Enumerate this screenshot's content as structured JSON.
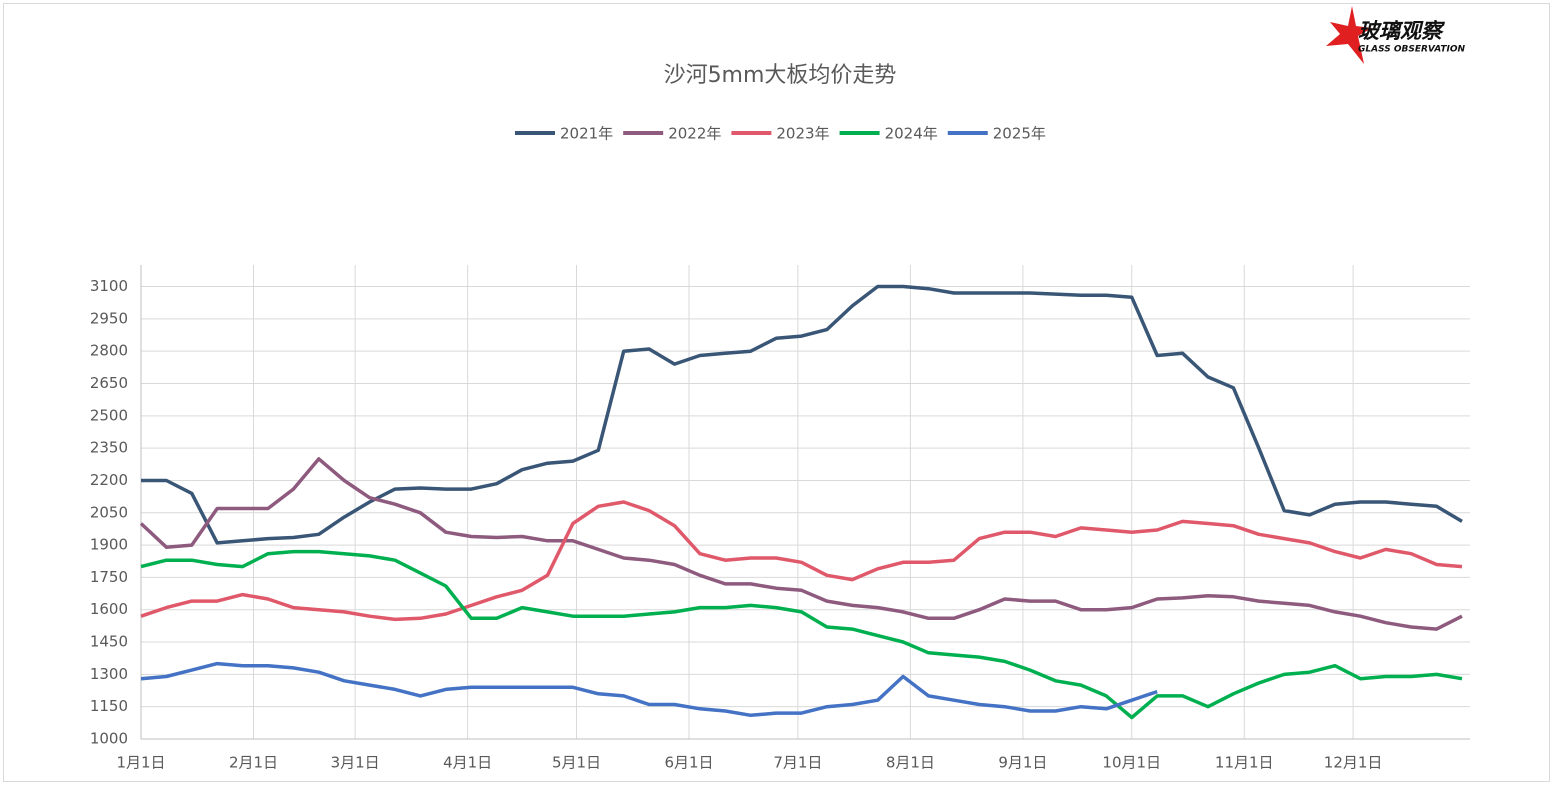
{
  "chart_data": {
    "type": "line",
    "title": "沙河5mm大板均价走势",
    "logo": {
      "title": "玻璃观察",
      "subtitle": "GLASS OBSERVATION"
    },
    "x": [
      0,
      7,
      14,
      21,
      28,
      35,
      42,
      49,
      56,
      63,
      70,
      77,
      84,
      91,
      98,
      105,
      112,
      119,
      126,
      133,
      140,
      147,
      154,
      161,
      168,
      175,
      182,
      189,
      196,
      203,
      210,
      217,
      224,
      231,
      238,
      245,
      252,
      259,
      266,
      273,
      280,
      287,
      294,
      301,
      308,
      315,
      322,
      329,
      336,
      343,
      350,
      357,
      364
    ],
    "xlim": [
      0,
      364
    ],
    "xticks": [
      {
        "value": 0,
        "label": "1月1日"
      },
      {
        "value": 31,
        "label": "2月1日"
      },
      {
        "value": 59,
        "label": "3月1日"
      },
      {
        "value": 90,
        "label": "4月1日"
      },
      {
        "value": 120,
        "label": "5月1日"
      },
      {
        "value": 151,
        "label": "6月1日"
      },
      {
        "value": 181,
        "label": "7月1日"
      },
      {
        "value": 212,
        "label": "8月1日"
      },
      {
        "value": 243,
        "label": "9月1日"
      },
      {
        "value": 273,
        "label": "10月1日"
      },
      {
        "value": 304,
        "label": "11月1日"
      },
      {
        "value": 334,
        "label": "12月1日"
      }
    ],
    "ylim": [
      1000,
      3200
    ],
    "yticks": [
      1000,
      1150,
      1300,
      1450,
      1600,
      1750,
      1900,
      2050,
      2200,
      2350,
      2500,
      2650,
      2800,
      2950,
      3100
    ],
    "grid": true,
    "series": [
      {
        "name": "2021年",
        "color": "#3a5676",
        "values": [
          2200,
          2200,
          2140,
          1910,
          1920,
          1930,
          1935,
          1950,
          2030,
          2100,
          2160,
          2165,
          2160,
          2160,
          2185,
          2250,
          2280,
          2290,
          2340,
          2800,
          2810,
          2740,
          2780,
          2790,
          2800,
          2860,
          2870,
          2900,
          3010,
          3100,
          3100,
          3090,
          3070,
          3070,
          3070,
          3070,
          3065,
          3060,
          3060,
          3050,
          2780,
          2790,
          2680,
          2630,
          2350,
          2060,
          2040,
          2090,
          2100,
          2100,
          2090,
          2080,
          2010
        ]
      },
      {
        "name": "2022年",
        "color": "#8e5b7f",
        "values": [
          2000,
          1890,
          1900,
          2070,
          2070,
          2070,
          2160,
          2300,
          2200,
          2120,
          2090,
          2050,
          1960,
          1940,
          1935,
          1940,
          1920,
          1920,
          1880,
          1840,
          1830,
          1810,
          1760,
          1720,
          1720,
          1700,
          1690,
          1640,
          1620,
          1610,
          1590,
          1560,
          1560,
          1600,
          1650,
          1640,
          1640,
          1600,
          1600,
          1610,
          1650,
          1655,
          1665,
          1660,
          1640,
          1630,
          1620,
          1590,
          1570,
          1540,
          1520,
          1510,
          1570
        ]
      },
      {
        "name": "2023年",
        "color": "#e0596a",
        "values": [
          1570,
          1610,
          1640,
          1640,
          1670,
          1650,
          1610,
          1600,
          1590,
          1570,
          1555,
          1560,
          1580,
          1620,
          1660,
          1690,
          1760,
          2000,
          2080,
          2100,
          2060,
          1990,
          1860,
          1830,
          1840,
          1840,
          1820,
          1760,
          1740,
          1790,
          1820,
          1820,
          1830,
          1930,
          1960,
          1960,
          1940,
          1980,
          1970,
          1960,
          1970,
          2010,
          2000,
          1990,
          1950,
          1930,
          1910,
          1870,
          1840,
          1880,
          1860,
          1810,
          1800
        ]
      },
      {
        "name": "2024年",
        "color": "#00b050",
        "values": [
          1800,
          1830,
          1830,
          1810,
          1800,
          1860,
          1870,
          1870,
          1860,
          1850,
          1830,
          1770,
          1710,
          1560,
          1560,
          1610,
          1590,
          1570,
          1570,
          1570,
          1580,
          1590,
          1610,
          1610,
          1620,
          1610,
          1590,
          1520,
          1510,
          1480,
          1450,
          1400,
          1390,
          1380,
          1360,
          1320,
          1270,
          1250,
          1200,
          1100,
          1200,
          1200,
          1150,
          1210,
          1260,
          1300,
          1310,
          1340,
          1280,
          1290,
          1290,
          1300,
          1280
        ]
      },
      {
        "name": "2025年",
        "color": "#4472c4",
        "values": [
          1280,
          1290,
          1320,
          1350,
          1340,
          1340,
          1330,
          1310,
          1270,
          1250,
          1230,
          1200,
          1230,
          1240,
          1240,
          1240,
          1240,
          1240,
          1210,
          1200,
          1160,
          1160,
          1140,
          1130,
          1110,
          1120,
          1120,
          1150,
          1160,
          1180,
          1290,
          1200,
          1180,
          1160,
          1150,
          1130,
          1130,
          1150,
          1140,
          1180,
          1220,
          null,
          null,
          null,
          null,
          null,
          null,
          null,
          null,
          null,
          null,
          null,
          null
        ]
      }
    ]
  }
}
